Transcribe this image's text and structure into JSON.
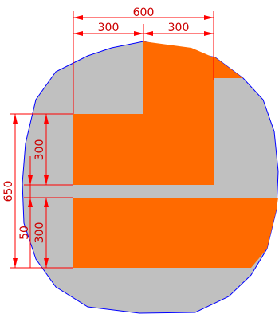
{
  "drawing": {
    "colors": {
      "background": "#ffffff",
      "circle_fill": "#c0c0c0",
      "circle_outline": "#0000ff",
      "section_fill": "#ff6a00",
      "dimension": "#ff0000",
      "dimension_text": "#cc0000"
    },
    "dimensions": {
      "total_width": "600",
      "left_width": "300",
      "right_width": "300",
      "total_height": "650",
      "upper_height": "300",
      "gap_height": "50",
      "lower_height": "300"
    }
  }
}
